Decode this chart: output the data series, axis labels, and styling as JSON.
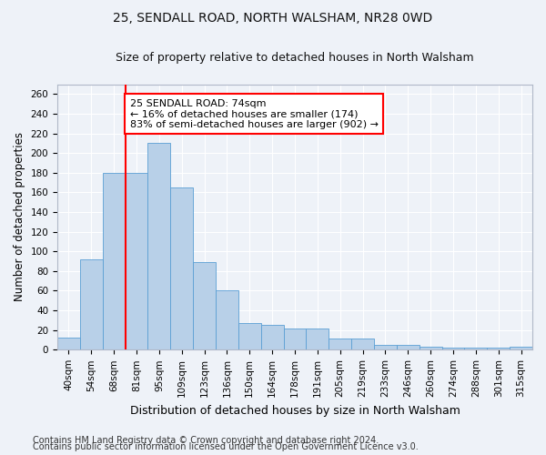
{
  "title1": "25, SENDALL ROAD, NORTH WALSHAM, NR28 0WD",
  "title2": "Size of property relative to detached houses in North Walsham",
  "xlabel": "Distribution of detached houses by size in North Walsham",
  "ylabel": "Number of detached properties",
  "categories": [
    "40sqm",
    "54sqm",
    "68sqm",
    "81sqm",
    "95sqm",
    "109sqm",
    "123sqm",
    "136sqm",
    "150sqm",
    "164sqm",
    "178sqm",
    "191sqm",
    "205sqm",
    "219sqm",
    "233sqm",
    "246sqm",
    "260sqm",
    "274sqm",
    "288sqm",
    "301sqm",
    "315sqm"
  ],
  "values": [
    12,
    92,
    180,
    180,
    210,
    165,
    89,
    60,
    27,
    25,
    22,
    22,
    11,
    11,
    5,
    5,
    3,
    2,
    2,
    2,
    3
  ],
  "bar_color": "#b8d0e8",
  "bar_edge_color": "#5a9fd4",
  "red_line_color": "red",
  "red_line_x": 2.5,
  "annotation_text": "25 SENDALL ROAD: 74sqm\n← 16% of detached houses are smaller (174)\n83% of semi-detached houses are larger (902) →",
  "annotation_box_color": "white",
  "annotation_box_edge_color": "red",
  "ylim": [
    0,
    270
  ],
  "yticks": [
    0,
    20,
    40,
    60,
    80,
    100,
    120,
    140,
    160,
    180,
    200,
    220,
    240,
    260
  ],
  "footnote1": "Contains HM Land Registry data © Crown copyright and database right 2024.",
  "footnote2": "Contains public sector information licensed under the Open Government Licence v3.0.",
  "background_color": "#eef2f8",
  "grid_color": "white",
  "title1_fontsize": 10,
  "title2_fontsize": 9,
  "xlabel_fontsize": 9,
  "ylabel_fontsize": 8.5,
  "tick_fontsize": 7.5,
  "annotation_fontsize": 8,
  "footnote_fontsize": 7
}
